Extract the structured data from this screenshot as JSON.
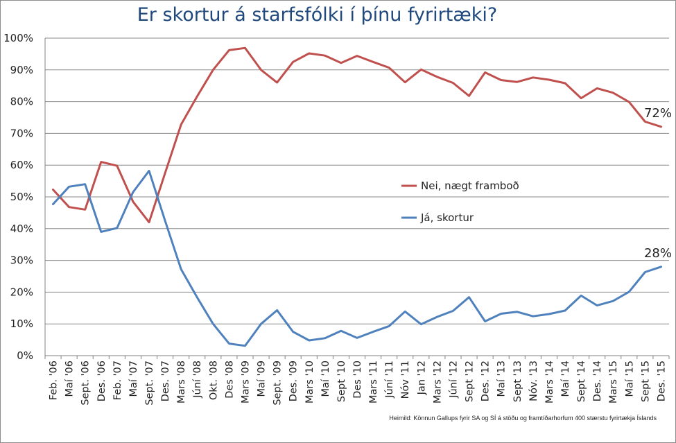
{
  "chart_data": {
    "type": "line",
    "title": "Er skortur á starfsfólki í þínu fyrirtæki?",
    "source": "Heimild: Könnun Gallups fyrir SA og SÍ á stöðu og framtíðarhorfum 400 stærstu fyrirtækja Íslands",
    "ylim": [
      0,
      100
    ],
    "yticks": [
      "0%",
      "10%",
      "20%",
      "30%",
      "40%",
      "50%",
      "60%",
      "70%",
      "80%",
      "90%",
      "100%"
    ],
    "grid": true,
    "legend_position": "right-middle",
    "categories": [
      "Feb. '06",
      "Maí '06",
      "Sept. '06",
      "Des. '06",
      "Feb. '07",
      "Maí '07",
      "Sept. '07",
      "Des. '07",
      "Mars '08",
      "Júní '08",
      "Okt. '08",
      "Des '08",
      "Mars '09",
      "Maí '09",
      "Sept. '09",
      "Des. '09",
      "Mars '10",
      "Maí '10",
      "Sept '10",
      "Des '10",
      "Mars '11",
      "Júní '11",
      "Nóv '11",
      "Jan '12",
      "Mars '12",
      "Júní '12",
      "Sept '12",
      "Des. '12",
      "Maí '13",
      "Sept '13",
      "Nóv. '13",
      "Mars '14",
      "Maí '14",
      "Sept '14",
      "Des. '14",
      "Mars '15",
      "Maí '15",
      "Sept '15",
      "Des. '15"
    ],
    "series": [
      {
        "name": "Nei, nægt framboð",
        "color": "#c0504d",
        "values": [
          52.3,
          46.8,
          46,
          61,
          59.8,
          48.5,
          42,
          57.5,
          72.8,
          81.6,
          90,
          96.2,
          96.9,
          90,
          86,
          92.5,
          95.2,
          94.5,
          92.2,
          94.4,
          92.5,
          90.7,
          86.1,
          90.1,
          87.8,
          85.9,
          81.8,
          89.2,
          86.8,
          86.2,
          87.6,
          86.9,
          85.8,
          81.1,
          84.2,
          82.8,
          79.9,
          73.7,
          72.1
        ],
        "end_label": "72%"
      },
      {
        "name": "Já, skortur",
        "color": "#4f81bd",
        "values": [
          47.7,
          53.2,
          54,
          39,
          40.2,
          51.5,
          58.2,
          42.5,
          27.2,
          18.4,
          10,
          3.8,
          3.1,
          10,
          14.3,
          7.5,
          4.8,
          5.5,
          7.8,
          5.6,
          7.5,
          9.3,
          13.9,
          9.9,
          12.2,
          14.1,
          18.4,
          10.8,
          13.2,
          13.8,
          12.4,
          13.1,
          14.2,
          18.9,
          15.8,
          17.2,
          20.1,
          26.3,
          28
        ],
        "end_label": "28%"
      }
    ]
  }
}
